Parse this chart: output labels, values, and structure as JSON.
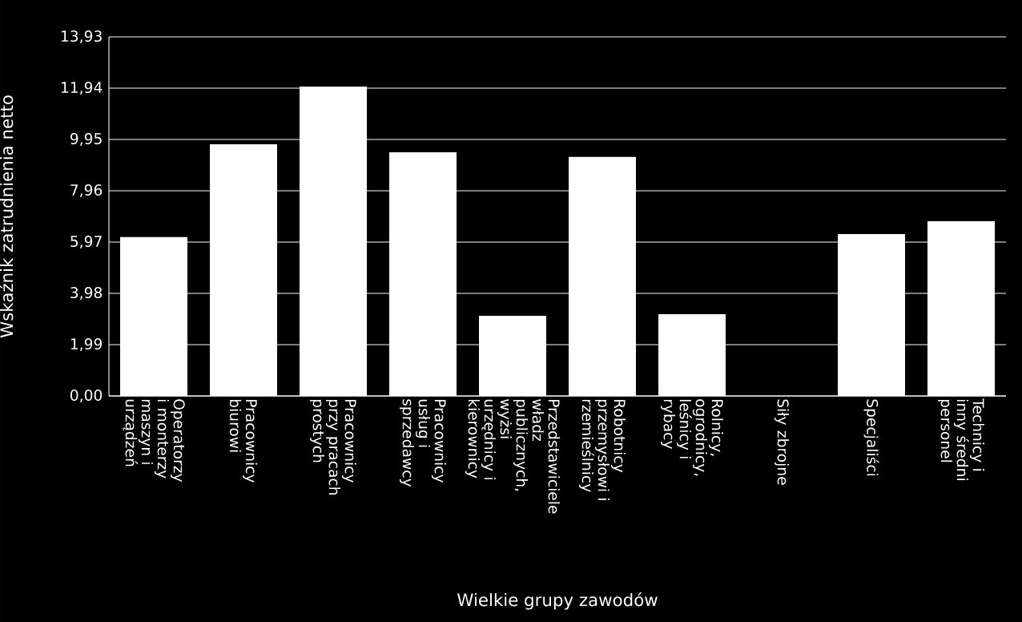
{
  "chart_data": {
    "type": "bar",
    "xlabel": "Wielkie grupy zawodów",
    "ylabel": "Wskaźnik zatrudnienia netto",
    "categories": [
      "Operatorzy i monterzy maszyn i urządzeń",
      "Pracownicy biurowi",
      "Pracownicy przy pracach prostych",
      "Pracownicy usług i sprzedawcy",
      "Przedstawiciele władz publicznych, wyżsi urzędnicy i kierownicy",
      "Robotnicy przemysłowi i rzemieślnicy",
      "Rolnicy, ogrodnicy, leśnicy i rybacy",
      "Siły zbrojne",
      "Specjaliści",
      "Technicy i inny średni personel"
    ],
    "values": [
      6.16,
      9.76,
      12.0,
      9.45,
      3.11,
      9.27,
      3.17,
      0,
      6.28,
      6.78
    ],
    "color": "#ffffff",
    "ylim": [
      0,
      13.93
    ],
    "yticks": [
      {
        "value": 0,
        "label": "0,00"
      },
      {
        "value": 1.99,
        "label": "1,99"
      },
      {
        "value": 3.98,
        "label": "3,98"
      },
      {
        "value": 5.97,
        "label": "5,97"
      },
      {
        "value": 7.96,
        "label": "7,96"
      },
      {
        "value": 9.95,
        "label": "9,95"
      },
      {
        "value": 11.94,
        "label": "11,94"
      },
      {
        "value": 13.93,
        "label": "13,93"
      }
    ],
    "grid": "y"
  }
}
